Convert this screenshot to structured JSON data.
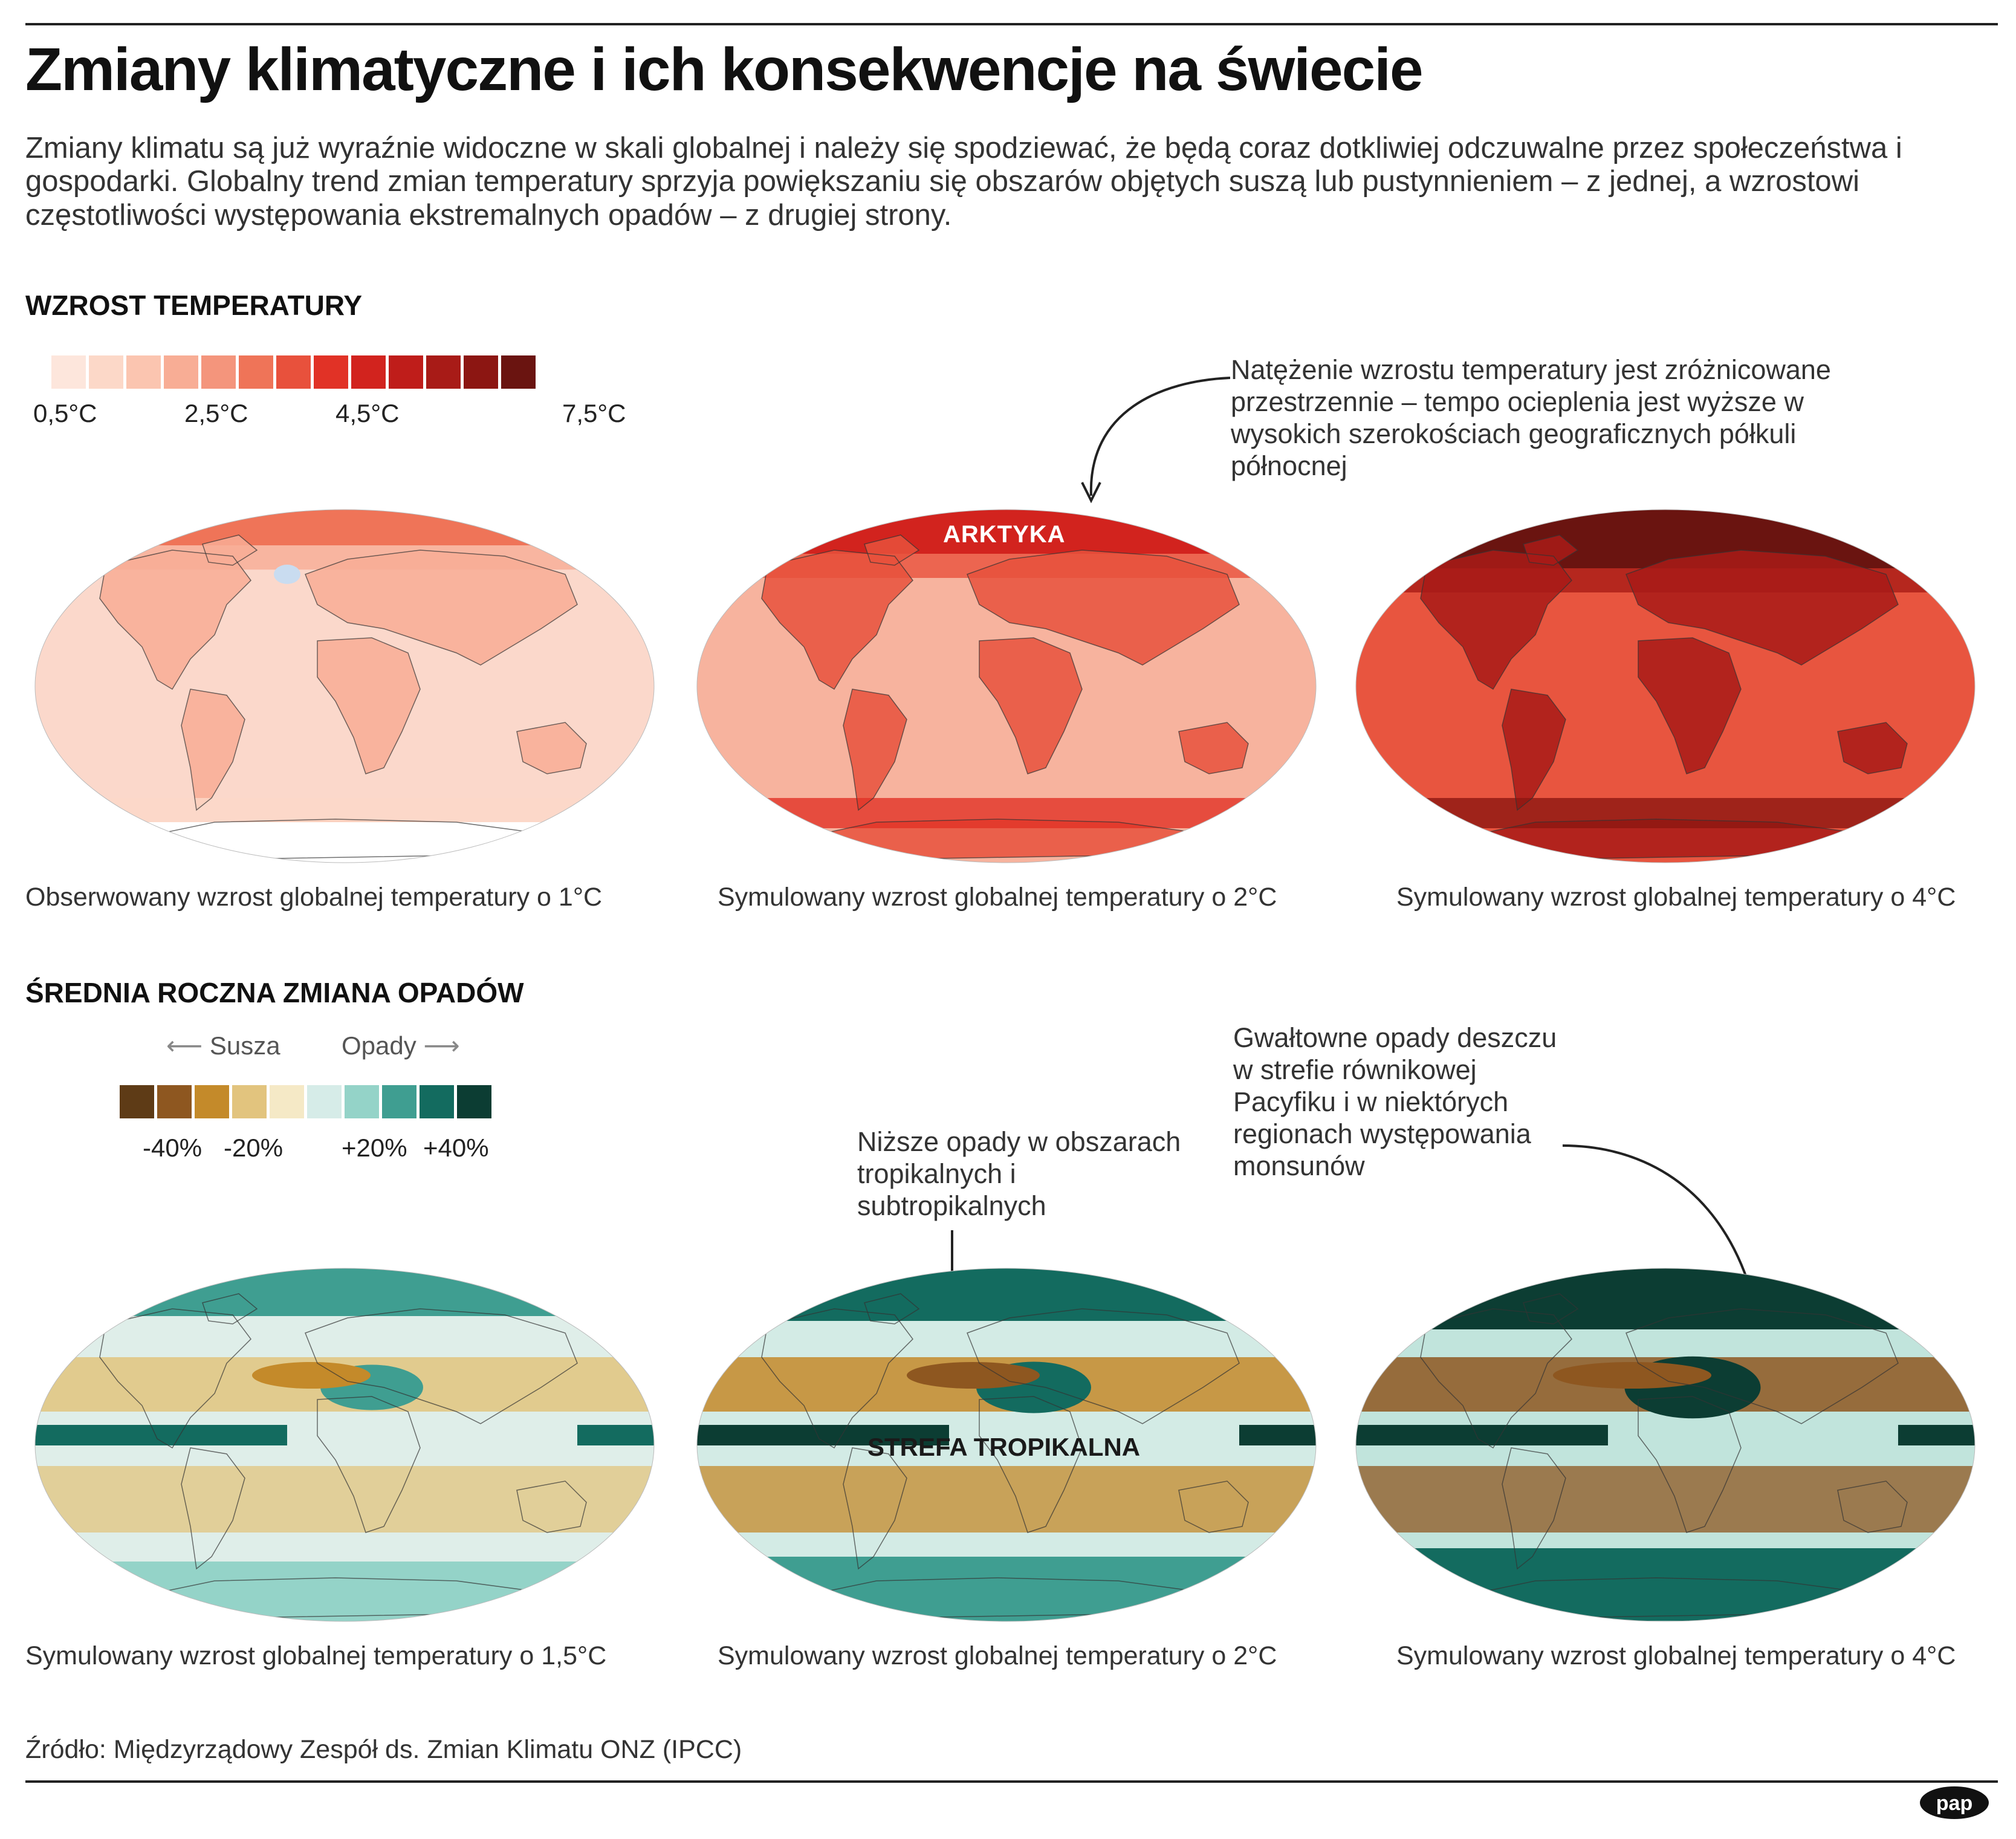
{
  "title": "Zmiany klimatyczne i ich konsekwencje na świecie",
  "intro": "Zmiany klimatu są już wyraźnie widoczne w skali globalnej i należy się spodziewać, że będą coraz dotkliwiej odczuwalne przez społeczeństwa i gospodarki. Globalny trend zmian temperatury sprzyja powiększaniu się obszarów objętych suszą lub pustynnieniem – z jednej, a wzrostowi częstotliwości występowania ekstremalnych opadów –  z drugiej strony.",
  "temperature": {
    "section_title": "WZROST TEMPERATURY",
    "legend": {
      "colors": [
        "#fde6dc",
        "#fcd8c8",
        "#fbc5b0",
        "#f8ad95",
        "#f4957c",
        "#ef7458",
        "#e8513c",
        "#e13226",
        "#d2231e",
        "#bf1d1a",
        "#a81b17",
        "#8c1612",
        "#6a1410"
      ],
      "labels": [
        "0,5°C",
        "2,5°C",
        "4,5°C",
        "7,5°C"
      ]
    },
    "annotation": "Natężenie wzrostu temperatury jest zróżnicowane przestrzennie – tempo ocieplenia jest wyższe w wysokich szerokościach geograficznych półkuli północnej",
    "region_label": "ARKTYKA",
    "maps": [
      {
        "caption": "Obserwowany wzrost globalnej temperatury o 1°C",
        "base_color": "#fbd8cb",
        "level": 0.12
      },
      {
        "caption": "Symulowany wzrost globalnej temperatury o 2°C",
        "base_color": "#f7b39e",
        "level": 0.35
      },
      {
        "caption": "Symulowany wzrost globalnej temperatury o 4°C",
        "base_color": "#e8553f",
        "level": 0.75
      }
    ]
  },
  "precipitation": {
    "section_title": "ŚREDNIA ROCZNA ZMIANA OPADÓW",
    "direction_left": "Susza",
    "direction_right": "Opady",
    "legend": {
      "colors": [
        "#5e3b16",
        "#8e5720",
        "#c48a2a",
        "#e2c47e",
        "#f5e9c6",
        "#d6ece8",
        "#94d3c8",
        "#3f9e91",
        "#136b5f",
        "#0c3d33"
      ],
      "labels": [
        "-40%",
        "-20%",
        "+20%",
        "+40%"
      ]
    },
    "annotation_tropics": "Niższe opady w obszarach tropikalnych i subtropikalnych",
    "annotation_monsoon": "Gwałtowne opady deszczu w strefie równikowej Pacyfiku i w niektórych regionach występowania monsunów",
    "region_label": "STREFA TROPIKALNA",
    "maps": [
      {
        "caption": "Symulowany wzrost globalnej temperatury o 1,5°C",
        "base_color": "#dfeee9",
        "level": 0.3
      },
      {
        "caption": "Symulowany wzrost globalnej temperatury o 2°C",
        "base_color": "#d3ebe5",
        "level": 0.5
      },
      {
        "caption": "Symulowany wzrost globalnej temperatury o 4°C",
        "base_color": "#c1e4dc",
        "level": 0.85
      }
    ]
  },
  "source": "Źródło: Międzyrządowy Zespół ds. Zmian Klimatu ONZ (IPCC)",
  "logo": "pap"
}
